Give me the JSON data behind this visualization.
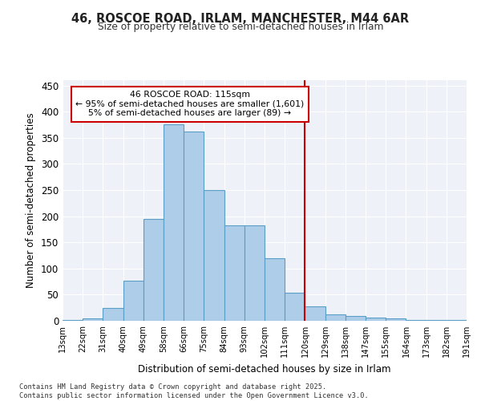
{
  "title_line1": "46, ROSCOE ROAD, IRLAM, MANCHESTER, M44 6AR",
  "title_line2": "Size of property relative to semi-detached houses in Irlam",
  "xlabel": "Distribution of semi-detached houses by size in Irlam",
  "ylabel": "Number of semi-detached properties",
  "footer": "Contains HM Land Registry data © Crown copyright and database right 2025.\nContains public sector information licensed under the Open Government Licence v3.0.",
  "bin_labels": [
    "13sqm",
    "22sqm",
    "31sqm",
    "40sqm",
    "49sqm",
    "58sqm",
    "66sqm",
    "75sqm",
    "84sqm",
    "93sqm",
    "102sqm",
    "111sqm",
    "120sqm",
    "129sqm",
    "138sqm",
    "147sqm",
    "155sqm",
    "164sqm",
    "173sqm",
    "182sqm",
    "191sqm"
  ],
  "bar_values": [
    2,
    5,
    25,
    77,
    195,
    375,
    362,
    250,
    182,
    182,
    120,
    54,
    28,
    13,
    9,
    6,
    5,
    2,
    1,
    1
  ],
  "bar_color": "#aecde8",
  "bar_edge_color": "#5a9ec8",
  "vline_x": 11.5,
  "vline_color": "#cc0000",
  "annotation_title": "46 ROSCOE ROAD: 115sqm",
  "annotation_line1": "← 95% of semi-detached houses are smaller (1,601)",
  "annotation_line2": "5% of semi-detached houses are larger (89) →",
  "annotation_box_color": "#cc0000",
  "ylim": [
    0,
    460
  ],
  "yticks": [
    0,
    50,
    100,
    150,
    200,
    250,
    300,
    350,
    400,
    450
  ],
  "bg_color": "#eef2f8"
}
